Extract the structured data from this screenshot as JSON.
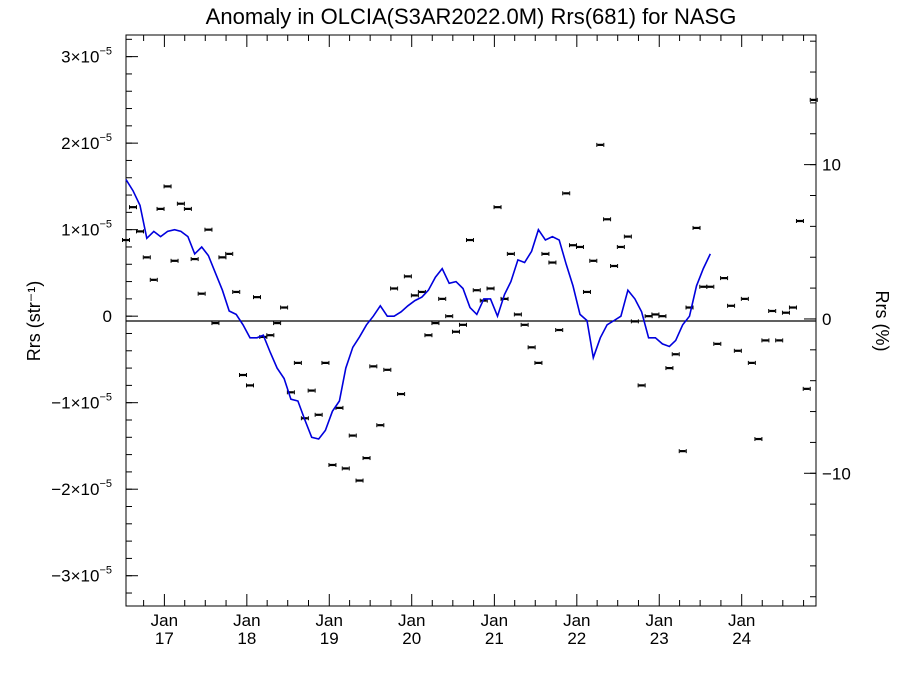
{
  "chart_data": {
    "type": "line",
    "title": "Anomaly in OLCIA(S3AR2022.0M) Rrs(681) for NASG",
    "ylabel_left": "Rrs (str⁻¹)",
    "ylabel_right": "Rrs (%)",
    "y_left_range": [
      -3.35e-05,
      3.25e-05
    ],
    "y_right_range": [
      -18.6,
      18.4
    ],
    "grid": false,
    "legend": "none",
    "colors": {
      "line": "#0000dd",
      "points": "#000000",
      "axes": "#000000"
    },
    "x_range": [
      "2016-07-15",
      "2024-11-25"
    ],
    "x_ticks": [
      {
        "date": "2017-01-01",
        "month": "Jan",
        "year": "17"
      },
      {
        "date": "2018-01-01",
        "month": "Jan",
        "year": "18"
      },
      {
        "date": "2019-01-01",
        "month": "Jan",
        "year": "19"
      },
      {
        "date": "2020-01-01",
        "month": "Jan",
        "year": "20"
      },
      {
        "date": "2021-01-01",
        "month": "Jan",
        "year": "21"
      },
      {
        "date": "2022-01-01",
        "month": "Jan",
        "year": "22"
      },
      {
        "date": "2023-01-01",
        "month": "Jan",
        "year": "23"
      },
      {
        "date": "2024-01-01",
        "month": "Jan",
        "year": "24"
      }
    ],
    "y_left_ticks": [
      {
        "value": 3e-05,
        "mantissa": "3×10",
        "exp": "−5"
      },
      {
        "value": 2e-05,
        "mantissa": "2×10",
        "exp": "−5"
      },
      {
        "value": 1e-05,
        "mantissa": "1×10",
        "exp": "−5"
      },
      {
        "value": 0,
        "mantissa": "0",
        "exp": ""
      },
      {
        "value": -1e-05,
        "mantissa": "−1×10",
        "exp": "−5"
      },
      {
        "value": -2e-05,
        "mantissa": "−2×10",
        "exp": "−5"
      },
      {
        "value": -3e-05,
        "mantissa": "−3×10",
        "exp": "−5"
      }
    ],
    "y_right_ticks": [
      {
        "value": 10,
        "label": "10"
      },
      {
        "value": 0,
        "label": "0"
      },
      {
        "value": -10,
        "label": "−10"
      }
    ],
    "monthly_points": [
      {
        "x": "2016-07-15",
        "y": 8.8e-06
      },
      {
        "x": "2016-08-15",
        "y": 1.26e-05
      },
      {
        "x": "2016-09-15",
        "y": 9.8e-06
      },
      {
        "x": "2016-10-15",
        "y": 6.8e-06
      },
      {
        "x": "2016-11-15",
        "y": 4.2e-06
      },
      {
        "x": "2016-12-15",
        "y": 1.24e-05
      },
      {
        "x": "2017-01-15",
        "y": 1.5e-05
      },
      {
        "x": "2017-02-15",
        "y": 6.4e-06
      },
      {
        "x": "2017-03-15",
        "y": 1.3e-05
      },
      {
        "x": "2017-04-15",
        "y": 1.24e-05
      },
      {
        "x": "2017-05-15",
        "y": 6.6e-06
      },
      {
        "x": "2017-06-15",
        "y": 2.6e-06
      },
      {
        "x": "2017-07-15",
        "y": 1e-05
      },
      {
        "x": "2017-08-15",
        "y": -8e-07
      },
      {
        "x": "2017-09-15",
        "y": 6.8e-06
      },
      {
        "x": "2017-10-15",
        "y": 7.2e-06
      },
      {
        "x": "2017-11-15",
        "y": 2.8e-06
      },
      {
        "x": "2017-12-15",
        "y": -6.8e-06
      },
      {
        "x": "2018-01-15",
        "y": -8e-06
      },
      {
        "x": "2018-02-15",
        "y": 2.2e-06
      },
      {
        "x": "2018-03-15",
        "y": -2.4e-06
      },
      {
        "x": "2018-04-15",
        "y": -2.2e-06
      },
      {
        "x": "2018-05-15",
        "y": -8e-07
      },
      {
        "x": "2018-06-15",
        "y": 1e-06
      },
      {
        "x": "2018-07-15",
        "y": -8.8e-06
      },
      {
        "x": "2018-08-15",
        "y": -5.4e-06
      },
      {
        "x": "2018-09-15",
        "y": -1.18e-05
      },
      {
        "x": "2018-10-15",
        "y": -8.6e-06
      },
      {
        "x": "2018-11-15",
        "y": -1.14e-05
      },
      {
        "x": "2018-12-15",
        "y": -5.4e-06
      },
      {
        "x": "2019-01-15",
        "y": -1.72e-05
      },
      {
        "x": "2019-02-15",
        "y": -1.06e-05
      },
      {
        "x": "2019-03-15",
        "y": -1.76e-05
      },
      {
        "x": "2019-04-15",
        "y": -1.38e-05
      },
      {
        "x": "2019-05-15",
        "y": -1.9e-05
      },
      {
        "x": "2019-06-15",
        "y": -1.64e-05
      },
      {
        "x": "2019-07-15",
        "y": -5.8e-06
      },
      {
        "x": "2019-08-15",
        "y": -1.26e-05
      },
      {
        "x": "2019-09-15",
        "y": -6.2e-06
      },
      {
        "x": "2019-10-15",
        "y": 3.2e-06
      },
      {
        "x": "2019-11-15",
        "y": -9e-06
      },
      {
        "x": "2019-12-15",
        "y": 4.6e-06
      },
      {
        "x": "2020-01-15",
        "y": 2.4e-06
      },
      {
        "x": "2020-02-15",
        "y": 2.8e-06
      },
      {
        "x": "2020-03-15",
        "y": -2.2e-06
      },
      {
        "x": "2020-04-15",
        "y": -8e-07
      },
      {
        "x": "2020-05-15",
        "y": 2e-06
      },
      {
        "x": "2020-06-15",
        "y": 0.0
      },
      {
        "x": "2020-07-15",
        "y": -1.8e-06
      },
      {
        "x": "2020-08-15",
        "y": -1e-06
      },
      {
        "x": "2020-09-15",
        "y": 8.8e-06
      },
      {
        "x": "2020-10-15",
        "y": 3e-06
      },
      {
        "x": "2020-11-15",
        "y": 1.8e-06
      },
      {
        "x": "2020-12-15",
        "y": 3.2e-06
      },
      {
        "x": "2021-01-15",
        "y": 1.26e-05
      },
      {
        "x": "2021-02-15",
        "y": 2e-06
      },
      {
        "x": "2021-03-15",
        "y": 7.2e-06
      },
      {
        "x": "2021-04-15",
        "y": 2e-07
      },
      {
        "x": "2021-05-15",
        "y": -1e-06
      },
      {
        "x": "2021-06-15",
        "y": -3.6e-06
      },
      {
        "x": "2021-07-15",
        "y": -5.4e-06
      },
      {
        "x": "2021-08-15",
        "y": 7.2e-06
      },
      {
        "x": "2021-09-15",
        "y": 6.2e-06
      },
      {
        "x": "2021-10-15",
        "y": -1.6e-06
      },
      {
        "x": "2021-11-15",
        "y": 1.42e-05
      },
      {
        "x": "2021-12-15",
        "y": 8.2e-06
      },
      {
        "x": "2022-01-15",
        "y": 8e-06
      },
      {
        "x": "2022-02-15",
        "y": 2.8e-06
      },
      {
        "x": "2022-03-15",
        "y": 6.4e-06
      },
      {
        "x": "2022-04-15",
        "y": 1.98e-05
      },
      {
        "x": "2022-05-15",
        "y": 1.12e-05
      },
      {
        "x": "2022-06-15",
        "y": 5.8e-06
      },
      {
        "x": "2022-07-15",
        "y": 8e-06
      },
      {
        "x": "2022-08-15",
        "y": 9.2e-06
      },
      {
        "x": "2022-09-15",
        "y": -6e-07
      },
      {
        "x": "2022-10-15",
        "y": -8e-06
      },
      {
        "x": "2022-11-15",
        "y": 0.0
      },
      {
        "x": "2022-12-15",
        "y": 2e-07
      },
      {
        "x": "2023-01-15",
        "y": 0.0
      },
      {
        "x": "2023-02-15",
        "y": -6e-06
      },
      {
        "x": "2023-03-15",
        "y": -4.4e-06
      },
      {
        "x": "2023-04-15",
        "y": -1.56e-05
      },
      {
        "x": "2023-05-15",
        "y": 1e-06
      },
      {
        "x": "2023-06-15",
        "y": 1.02e-05
      },
      {
        "x": "2023-07-15",
        "y": 3.4e-06
      },
      {
        "x": "2023-08-15",
        "y": 3.4e-06
      },
      {
        "x": "2023-09-15",
        "y": -3.2e-06
      },
      {
        "x": "2023-10-15",
        "y": 4.4e-06
      },
      {
        "x": "2023-11-15",
        "y": 1.2e-06
      },
      {
        "x": "2023-12-15",
        "y": -4e-06
      },
      {
        "x": "2024-01-15",
        "y": 2e-06
      },
      {
        "x": "2024-02-15",
        "y": -5.4e-06
      },
      {
        "x": "2024-03-15",
        "y": -1.42e-05
      },
      {
        "x": "2024-04-15",
        "y": -2.8e-06
      },
      {
        "x": "2024-05-15",
        "y": 6e-07
      },
      {
        "x": "2024-06-15",
        "y": -2.8e-06
      },
      {
        "x": "2024-07-15",
        "y": 4e-07
      },
      {
        "x": "2024-08-15",
        "y": 1e-06
      },
      {
        "x": "2024-09-15",
        "y": 1.1e-05
      },
      {
        "x": "2024-10-15",
        "y": -8.4e-06
      },
      {
        "x": "2024-11-15",
        "y": 2.5e-05
      }
    ],
    "smoothed_line": [
      {
        "x": "2016-07-15",
        "y": 1.58e-05
      },
      {
        "x": "2016-08-15",
        "y": 1.45e-05
      },
      {
        "x": "2016-09-15",
        "y": 1.28e-05
      },
      {
        "x": "2016-10-15",
        "y": 9e-06
      },
      {
        "x": "2016-11-15",
        "y": 9.8e-06
      },
      {
        "x": "2016-12-15",
        "y": 9.2e-06
      },
      {
        "x": "2017-01-15",
        "y": 9.8e-06
      },
      {
        "x": "2017-02-15",
        "y": 1e-05
      },
      {
        "x": "2017-03-15",
        "y": 9.8e-06
      },
      {
        "x": "2017-04-15",
        "y": 9.2e-06
      },
      {
        "x": "2017-05-15",
        "y": 7.2e-06
      },
      {
        "x": "2017-06-15",
        "y": 8e-06
      },
      {
        "x": "2017-07-15",
        "y": 7e-06
      },
      {
        "x": "2017-08-15",
        "y": 5e-06
      },
      {
        "x": "2017-09-15",
        "y": 3e-06
      },
      {
        "x": "2017-10-15",
        "y": 6e-07
      },
      {
        "x": "2017-11-15",
        "y": 2e-07
      },
      {
        "x": "2017-12-15",
        "y": -1e-06
      },
      {
        "x": "2018-01-15",
        "y": -2.5e-06
      },
      {
        "x": "2018-02-15",
        "y": -2.5e-06
      },
      {
        "x": "2018-03-15",
        "y": -2.2e-06
      },
      {
        "x": "2018-04-15",
        "y": -4.2e-06
      },
      {
        "x": "2018-05-15",
        "y": -6e-06
      },
      {
        "x": "2018-06-15",
        "y": -7.2e-06
      },
      {
        "x": "2018-07-15",
        "y": -9.6e-06
      },
      {
        "x": "2018-08-15",
        "y": -9.8e-06
      },
      {
        "x": "2018-09-15",
        "y": -1.2e-05
      },
      {
        "x": "2018-10-15",
        "y": -1.4e-05
      },
      {
        "x": "2018-11-15",
        "y": -1.42e-05
      },
      {
        "x": "2018-12-15",
        "y": -1.32e-05
      },
      {
        "x": "2019-01-15",
        "y": -1.1e-05
      },
      {
        "x": "2019-02-15",
        "y": -9.8e-06
      },
      {
        "x": "2019-03-15",
        "y": -6e-06
      },
      {
        "x": "2019-04-15",
        "y": -3.6e-06
      },
      {
        "x": "2019-05-15",
        "y": -2.4e-06
      },
      {
        "x": "2019-06-15",
        "y": -1e-06
      },
      {
        "x": "2019-07-15",
        "y": 0.0
      },
      {
        "x": "2019-08-15",
        "y": 1.2e-06
      },
      {
        "x": "2019-09-15",
        "y": 0.0
      },
      {
        "x": "2019-10-15",
        "y": 0.0
      },
      {
        "x": "2019-11-15",
        "y": 5e-07
      },
      {
        "x": "2019-12-15",
        "y": 1.2e-06
      },
      {
        "x": "2020-01-15",
        "y": 1.8e-06
      },
      {
        "x": "2020-02-15",
        "y": 2.2e-06
      },
      {
        "x": "2020-03-15",
        "y": 3e-06
      },
      {
        "x": "2020-04-15",
        "y": 4.5e-06
      },
      {
        "x": "2020-05-15",
        "y": 5.5e-06
      },
      {
        "x": "2020-06-15",
        "y": 3.8e-06
      },
      {
        "x": "2020-07-15",
        "y": 4e-06
      },
      {
        "x": "2020-08-15",
        "y": 3.2e-06
      },
      {
        "x": "2020-09-15",
        "y": 1e-06
      },
      {
        "x": "2020-10-15",
        "y": 2e-07
      },
      {
        "x": "2020-11-15",
        "y": 2e-06
      },
      {
        "x": "2020-12-15",
        "y": 2e-06
      },
      {
        "x": "2021-01-15",
        "y": 0.0
      },
      {
        "x": "2021-02-15",
        "y": 2.5e-06
      },
      {
        "x": "2021-03-15",
        "y": 4e-06
      },
      {
        "x": "2021-04-15",
        "y": 6.5e-06
      },
      {
        "x": "2021-05-15",
        "y": 6.2e-06
      },
      {
        "x": "2021-06-15",
        "y": 7.5e-06
      },
      {
        "x": "2021-07-15",
        "y": 1e-05
      },
      {
        "x": "2021-08-15",
        "y": 8.8e-06
      },
      {
        "x": "2021-09-15",
        "y": 9.2e-06
      },
      {
        "x": "2021-10-15",
        "y": 8.8e-06
      },
      {
        "x": "2021-11-15",
        "y": 6e-06
      },
      {
        "x": "2021-12-15",
        "y": 3.5e-06
      },
      {
        "x": "2022-01-15",
        "y": 2e-07
      },
      {
        "x": "2022-02-15",
        "y": -5e-07
      },
      {
        "x": "2022-03-15",
        "y": -4.8e-06
      },
      {
        "x": "2022-04-15",
        "y": -2.5e-06
      },
      {
        "x": "2022-05-15",
        "y": -1e-06
      },
      {
        "x": "2022-06-15",
        "y": -5e-07
      },
      {
        "x": "2022-07-15",
        "y": 0.0
      },
      {
        "x": "2022-08-15",
        "y": 3e-06
      },
      {
        "x": "2022-09-15",
        "y": 2e-06
      },
      {
        "x": "2022-10-15",
        "y": 5e-07
      },
      {
        "x": "2022-11-15",
        "y": -2.5e-06
      },
      {
        "x": "2022-12-15",
        "y": -2.5e-06
      },
      {
        "x": "2023-01-15",
        "y": -3.2e-06
      },
      {
        "x": "2023-02-15",
        "y": -3.5e-06
      },
      {
        "x": "2023-03-15",
        "y": -2.8e-06
      },
      {
        "x": "2023-04-15",
        "y": -1e-06
      },
      {
        "x": "2023-05-15",
        "y": 0.0
      },
      {
        "x": "2023-06-15",
        "y": 3.5e-06
      },
      {
        "x": "2023-07-15",
        "y": 5.5e-06
      },
      {
        "x": "2023-08-15",
        "y": 7.2e-06
      }
    ]
  }
}
